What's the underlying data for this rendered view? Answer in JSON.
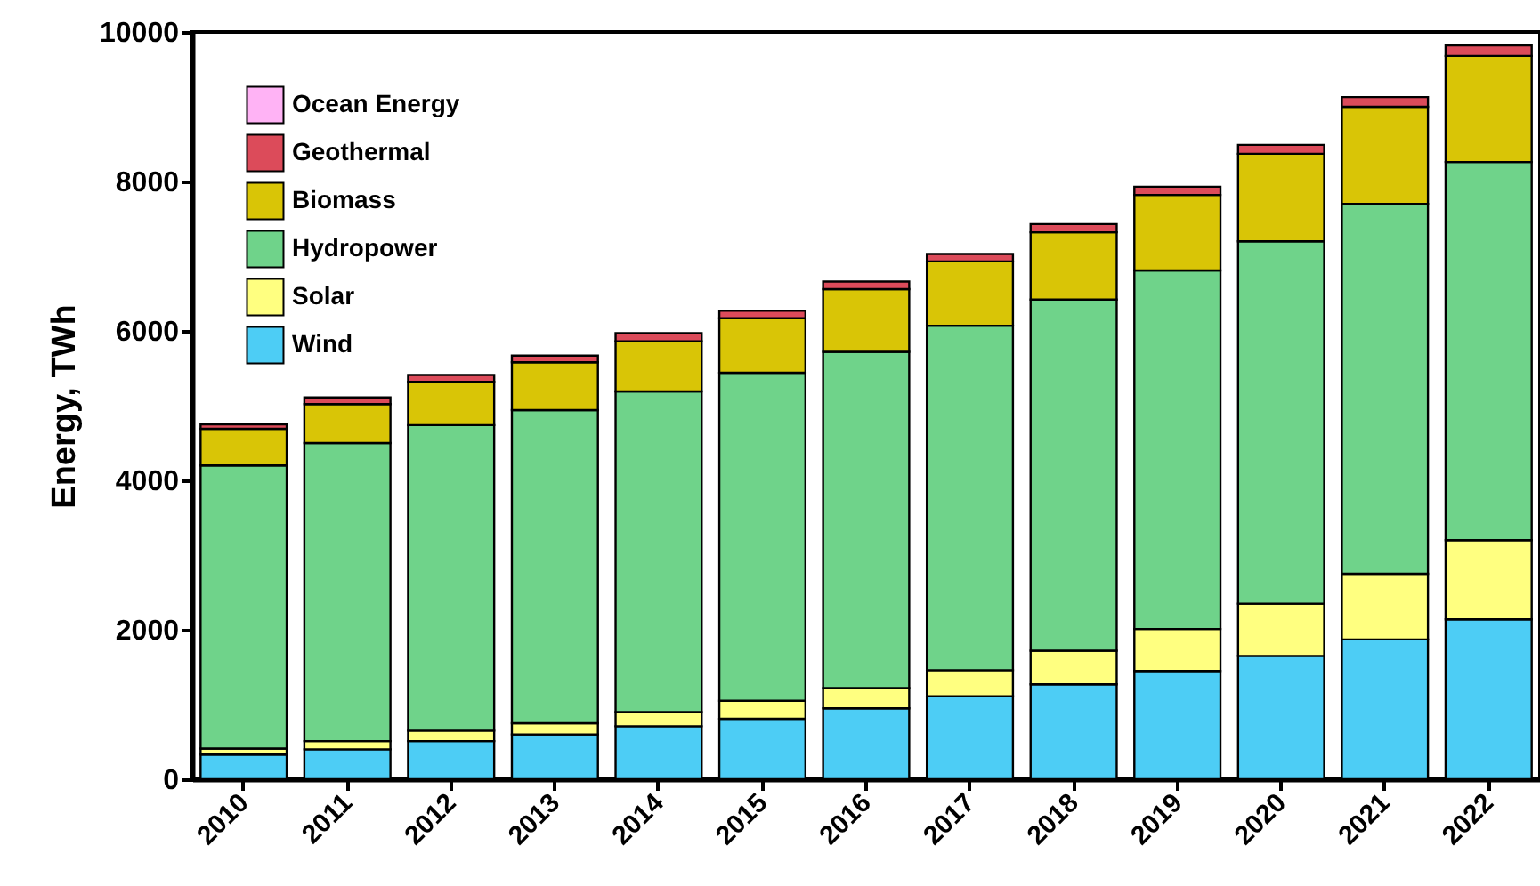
{
  "chart_data": {
    "type": "bar",
    "stacked": true,
    "ylabel": "Energy, TWh",
    "categories": [
      "2010",
      "2011",
      "2012",
      "2013",
      "2014",
      "2015",
      "2016",
      "2017",
      "2018",
      "2019",
      "2020",
      "2021",
      "2022"
    ],
    "ylim": [
      0,
      10000
    ],
    "yticks": [
      0,
      2000,
      4000,
      6000,
      8000,
      10000
    ],
    "grid": false,
    "legend": "top left",
    "series": [
      {
        "name": "Wind",
        "color": "#4dcdf5",
        "values": [
          330,
          400,
          510,
          600,
          710,
          810,
          950,
          1110,
          1270,
          1450,
          1650,
          1870,
          2140
        ]
      },
      {
        "name": "Solar",
        "color": "#ffff80",
        "values": [
          80,
          110,
          140,
          150,
          190,
          240,
          270,
          350,
          450,
          560,
          700,
          880,
          1060
        ]
      },
      {
        "name": "Hydropower",
        "color": "#6fd38a",
        "values": [
          3790,
          3990,
          4090,
          4190,
          4290,
          4390,
          4500,
          4610,
          4700,
          4800,
          4850,
          4950,
          5060
        ]
      },
      {
        "name": "Biomass",
        "color": "#d9c506",
        "values": [
          490,
          520,
          580,
          640,
          670,
          730,
          840,
          860,
          900,
          1010,
          1170,
          1300,
          1420
        ]
      },
      {
        "name": "Geothermal",
        "color": "#dc4b5a",
        "values": [
          60,
          90,
          90,
          90,
          110,
          100,
          100,
          100,
          110,
          110,
          120,
          130,
          140
        ]
      },
      {
        "name": "Ocean Energy",
        "color": "#ffb3f5",
        "values": [
          null,
          null,
          null,
          null,
          null,
          null,
          null,
          null,
          null,
          null,
          null,
          null,
          null
        ]
      }
    ]
  }
}
